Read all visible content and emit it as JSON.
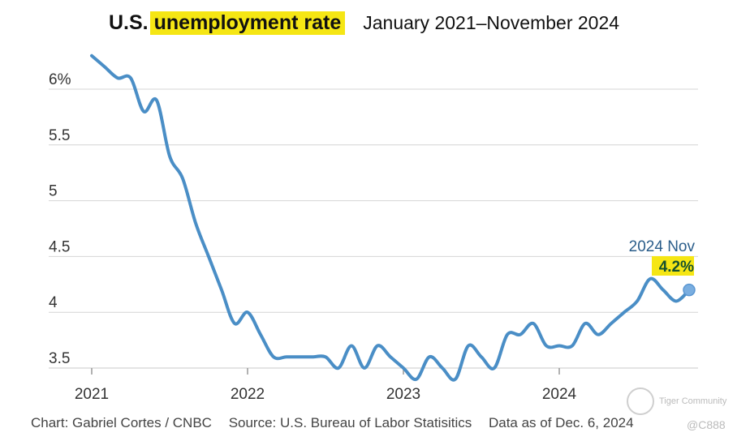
{
  "header": {
    "title_prefix": "U.S.",
    "title_highlight": "unemployment rate",
    "subtitle": "January 2021–November 2024",
    "highlight_color": "#f5e614"
  },
  "footer": {
    "credit": "Chart: Gabriel Cortes / CNBC",
    "source": "Source: U.S. Bureau of Labor Statisitics",
    "asof": "Data as of Dec. 6, 2024"
  },
  "watermark": {
    "name": "Tiger Community",
    "handle": "@C888"
  },
  "chart_data": {
    "type": "line",
    "title": "U.S. unemployment rate",
    "ylim": [
      3.4,
      6.5
    ],
    "yticks": [
      3.5,
      4,
      4.5,
      5,
      5.5,
      6
    ],
    "ytick_labels": [
      "3.5",
      "4",
      "4.5",
      "5",
      "5.5",
      "6%"
    ],
    "xticks": [
      "2021",
      "2022",
      "2023",
      "2024"
    ],
    "line_color": "#4a8ec6",
    "grid": true,
    "annotation": {
      "label": "2024 Nov",
      "value": "4.2%"
    },
    "series": [
      {
        "x": [
          "2021-01",
          "2021-02",
          "2021-03",
          "2021-04",
          "2021-05",
          "2021-06",
          "2021-07",
          "2021-08",
          "2021-09",
          "2021-10",
          "2021-11",
          "2021-12",
          "2022-01",
          "2022-02",
          "2022-03",
          "2022-04",
          "2022-05",
          "2022-06",
          "2022-07",
          "2022-08",
          "2022-09",
          "2022-10",
          "2022-11",
          "2022-12",
          "2023-01",
          "2023-02",
          "2023-03",
          "2023-04",
          "2023-05",
          "2023-06",
          "2023-07",
          "2023-08",
          "2023-09",
          "2023-10",
          "2023-11",
          "2023-12",
          "2024-01",
          "2024-02",
          "2024-03",
          "2024-04",
          "2024-05",
          "2024-06",
          "2024-07",
          "2024-08",
          "2024-09",
          "2024-10",
          "2024-11"
        ],
        "values": [
          6.3,
          6.2,
          6.1,
          6.1,
          5.8,
          5.9,
          5.4,
          5.2,
          4.8,
          4.5,
          4.2,
          3.9,
          4.0,
          3.8,
          3.6,
          3.6,
          3.6,
          3.6,
          3.6,
          3.5,
          3.7,
          3.5,
          3.7,
          3.6,
          3.5,
          3.4,
          3.6,
          3.5,
          3.4,
          3.7,
          3.6,
          3.5,
          3.8,
          3.8,
          3.9,
          3.7,
          3.7,
          3.7,
          3.9,
          3.8,
          3.9,
          4.0,
          4.1,
          4.3,
          4.2,
          4.1,
          4.2
        ]
      }
    ]
  }
}
